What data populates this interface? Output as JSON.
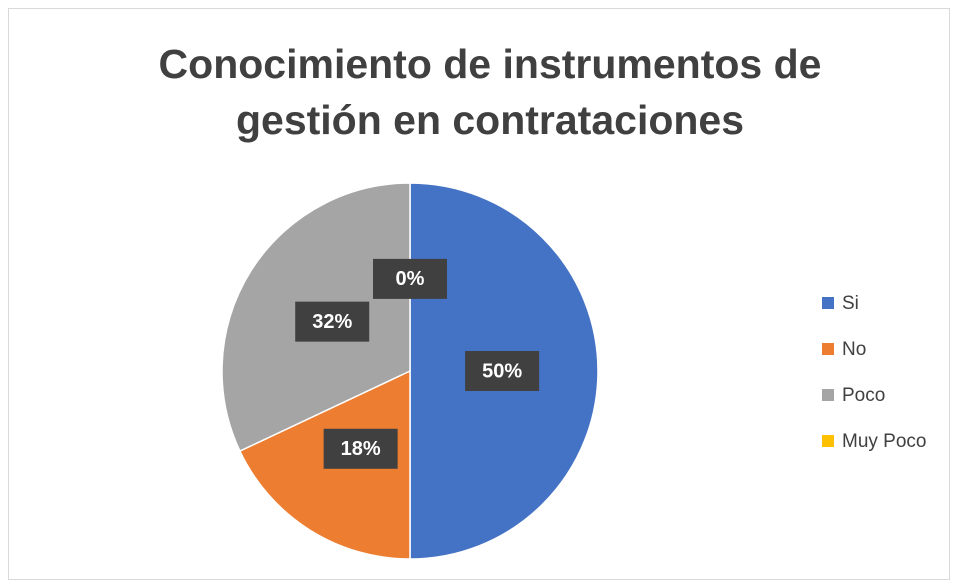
{
  "chart_data": {
    "type": "pie",
    "title": "Conocimiento de instrumentos de gestión en contrataciones",
    "categories": [
      "Si",
      "No",
      "Poco",
      "Muy Poco"
    ],
    "values": [
      50,
      18,
      32,
      0
    ],
    "value_labels": [
      "50%",
      "18%",
      "32%",
      "0%"
    ],
    "colors": [
      "#4472c4",
      "#ed7d31",
      "#a5a5a5",
      "#ffc000"
    ],
    "legend": "right"
  }
}
